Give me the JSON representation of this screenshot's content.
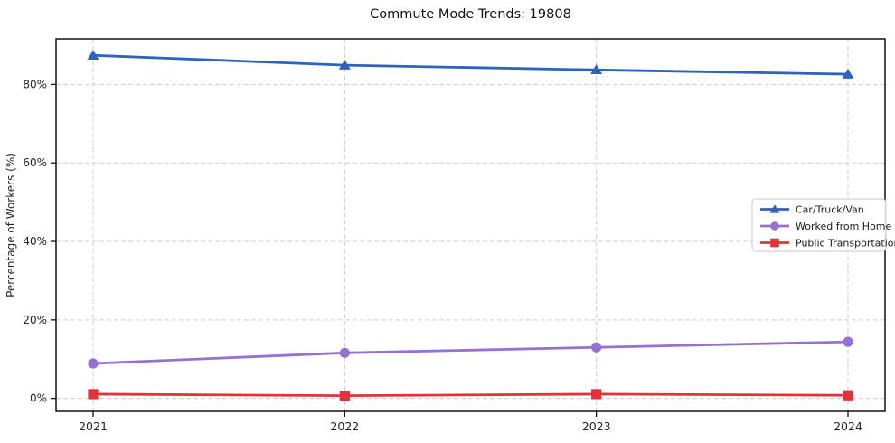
{
  "title": "Commute Mode Trends: 19808",
  "chart_data": {
    "type": "line",
    "title": "Commute Mode Trends: 19808",
    "xlabel": "",
    "ylabel": "Percentage of Workers (%)",
    "categories": [
      "2021",
      "2022",
      "2023",
      "2024"
    ],
    "series": [
      {
        "name": "Car/Truck/Van",
        "values": [
          87.4,
          84.9,
          83.7,
          82.6
        ],
        "color": "#2c63be",
        "marker": "triangle"
      },
      {
        "name": "Worked from Home",
        "values": [
          8.9,
          11.6,
          13.0,
          14.4
        ],
        "color": "#9770d4",
        "marker": "circle"
      },
      {
        "name": "Public Transportation",
        "values": [
          1.1,
          0.7,
          1.1,
          0.8
        ],
        "color": "#e2333a",
        "marker": "square"
      }
    ],
    "yticks": [
      0,
      20,
      40,
      60,
      80
    ],
    "ytick_labels": [
      "0%",
      "20%",
      "40%",
      "60%",
      "80%"
    ],
    "ylim": [
      -3.3,
      91.6
    ],
    "grid": true,
    "grid_style": "dashed",
    "legend_position": "center-right"
  },
  "colors": {
    "grid": "#cfcfcf",
    "spine": "#000000",
    "tick_text": "#262626",
    "legend_border": "#c8c8c8",
    "legend_bg": "#ffffff"
  }
}
